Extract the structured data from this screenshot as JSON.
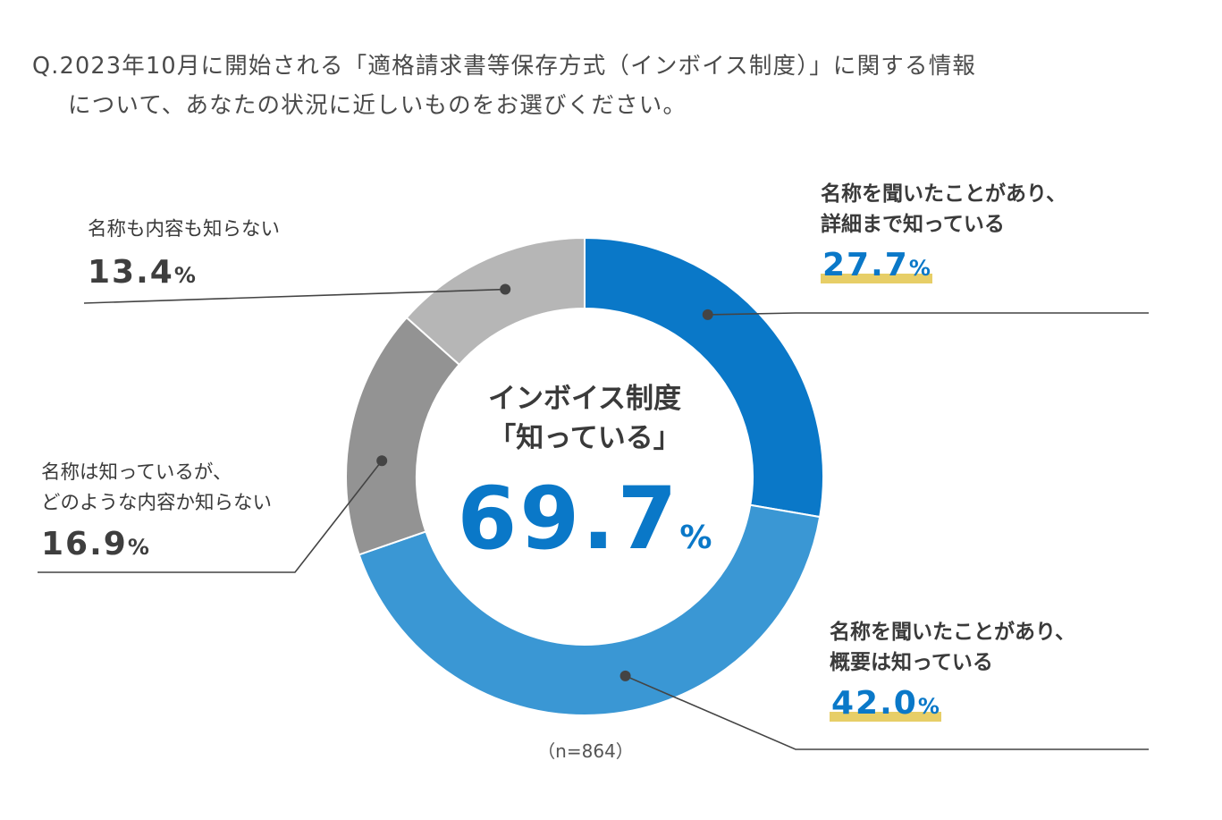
{
  "question": {
    "line1": "Q.2023年10月に開始される「適格請求書等保存方式（インボイス制度）」に関する情報",
    "line2": "について、あなたの状況に近しいものをお選びください。"
  },
  "center": {
    "title_line1": "インボイス制度",
    "title_line2": "「知っている」",
    "value": "69.7",
    "unit": "%"
  },
  "sample_size": "（n=864）",
  "labels": {
    "detail": {
      "line1": "名称を聞いたことがあり、",
      "line2": "詳細まで知っている",
      "value": "27.7",
      "unit": "%"
    },
    "overview": {
      "line1": "名称を聞いたことがあり、",
      "line2": "概要は知っている",
      "value": "42.0",
      "unit": "%"
    },
    "name_only": {
      "line1": "名称は知っているが、",
      "line2": "どのような内容か知らない",
      "value": "16.9",
      "unit": "%"
    },
    "none": {
      "line1": "名称も内容も知らない",
      "value": "13.4",
      "unit": "%"
    }
  },
  "chart_data": {
    "type": "pie",
    "donut": true,
    "unit": "%",
    "slices": [
      {
        "label": "名称を聞いたことがあり、詳細まで知っている",
        "value": 27.7,
        "color": "#0a78c8"
      },
      {
        "label": "名称を聞いたことがあり、概要は知っている",
        "value": 42.0,
        "color": "#3a97d4"
      },
      {
        "label": "名称は知っているが、どのような内容か知らない",
        "value": 16.9,
        "color": "#939393"
      },
      {
        "label": "名称も内容も知らない",
        "value": 13.4,
        "color": "#b6b6b6"
      }
    ],
    "center_total": 69.7,
    "sample_n": 864,
    "colors": {
      "highlight": "#e7ce67",
      "leader_line": "#444444"
    }
  }
}
